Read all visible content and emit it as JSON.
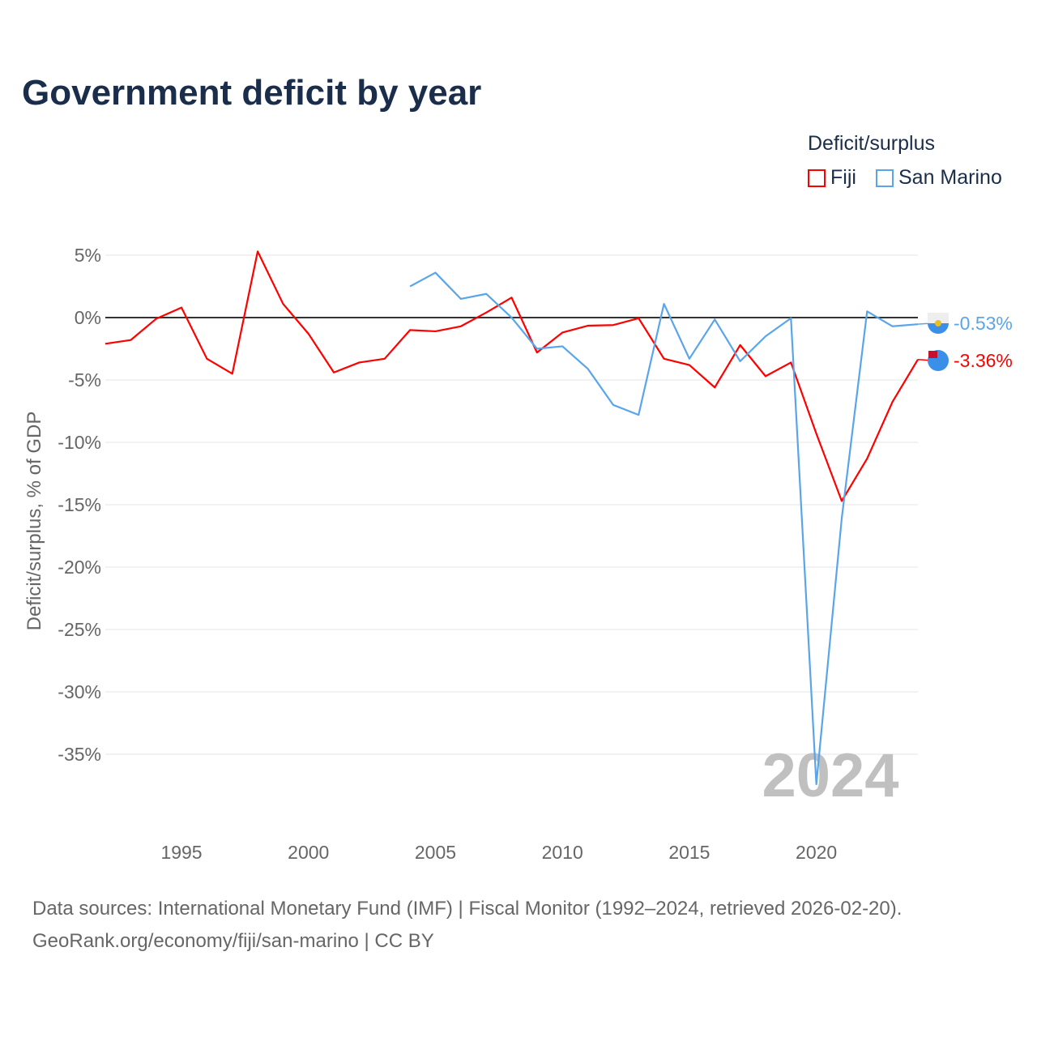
{
  "title": "Government deficit by year",
  "legend": {
    "title": "Deficit/surplus",
    "items": [
      {
        "label": "Fiji",
        "color": "#ff0000"
      },
      {
        "label": "San Marino",
        "color": "#5aa5ea"
      }
    ]
  },
  "sources": [
    "Data sources: International Monetary Fund (IMF) | Fiscal Monitor (1992–2024, retrieved 2026-02-20).",
    "GeoRank.org/economy/fiji/san-marino | CC BY"
  ],
  "year_watermark": "2024",
  "chart_data": {
    "type": "line",
    "title": "Government deficit by year",
    "xlabel": "",
    "ylabel": "Deficit/surplus, % of GDP",
    "xlim": [
      1992,
      2024
    ],
    "ylim": [
      -40,
      5
    ],
    "x_ticks": [
      1995,
      2000,
      2005,
      2010,
      2015,
      2020
    ],
    "y_ticks": [
      5,
      0,
      -5,
      -10,
      -15,
      -20,
      -25,
      -30,
      -35
    ],
    "y_tick_labels": [
      "5%",
      "0%",
      "-5%",
      "-10%",
      "-15%",
      "-20%",
      "-25%",
      "-30%",
      "-35%"
    ],
    "grid": true,
    "legend_position": "top-right",
    "series": [
      {
        "name": "Fiji",
        "color": "#ff0000",
        "end_label": "-3.36%",
        "x": [
          1992,
          1993,
          1994,
          1995,
          1996,
          1997,
          1998,
          1999,
          2000,
          2001,
          2002,
          2003,
          2004,
          2005,
          2006,
          2007,
          2008,
          2009,
          2010,
          2011,
          2012,
          2013,
          2014,
          2015,
          2016,
          2017,
          2018,
          2019,
          2020,
          2021,
          2022,
          2023,
          2024
        ],
        "y": [
          -2.1,
          -1.8,
          -0.1,
          0.8,
          -3.3,
          -4.5,
          5.3,
          1.1,
          -1.3,
          -4.4,
          -3.6,
          -3.3,
          -1.0,
          -1.1,
          -0.7,
          0.4,
          1.6,
          -2.8,
          -1.2,
          -0.65,
          -0.6,
          -0.05,
          -3.3,
          -3.8,
          -5.6,
          -2.2,
          -4.7,
          -3.6,
          -9.3,
          -14.7,
          -11.3,
          -6.75,
          -3.36
        ]
      },
      {
        "name": "San Marino",
        "color": "#5aa5ea",
        "end_label": "-0.53%",
        "x": [
          2004,
          2005,
          2006,
          2007,
          2008,
          2009,
          2010,
          2011,
          2012,
          2013,
          2014,
          2015,
          2016,
          2017,
          2018,
          2019,
          2020,
          2021,
          2022,
          2023,
          2024
        ],
        "y": [
          2.5,
          3.6,
          1.5,
          1.9,
          0.0,
          -2.5,
          -2.3,
          -4.1,
          -7.0,
          -7.8,
          1.1,
          -3.3,
          -0.15,
          -3.5,
          -1.5,
          -0.05,
          -37.4,
          -16.1,
          0.5,
          -0.7,
          -0.53
        ]
      }
    ]
  }
}
